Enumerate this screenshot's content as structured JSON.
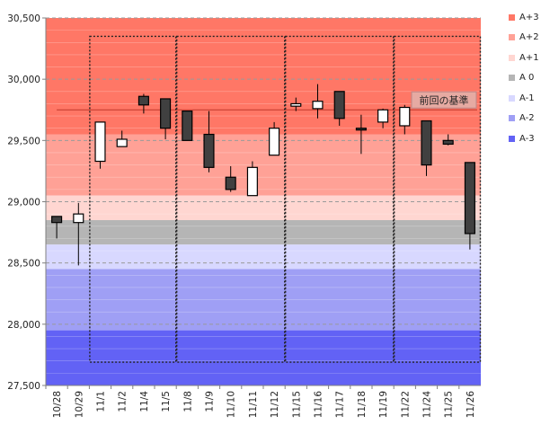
{
  "chart_data": {
    "type": "candlestick",
    "title": "",
    "xlabel": "",
    "ylabel": "",
    "ylim": [
      27500,
      30500
    ],
    "yticks": [
      "27,500",
      "28,000",
      "28,500",
      "29,000",
      "29,500",
      "30,000",
      "30,500"
    ],
    "ytick_values": [
      27500,
      28000,
      28500,
      29000,
      29500,
      30000,
      30500
    ],
    "grid": true,
    "categories": [
      "10/28",
      "10/29",
      "11/1",
      "11/2",
      "11/4",
      "11/5",
      "11/8",
      "11/9",
      "11/10",
      "11/11",
      "11/12",
      "11/15",
      "11/16",
      "11/17",
      "11/18",
      "11/19",
      "11/22",
      "11/24",
      "11/25",
      "11/26"
    ],
    "candles": [
      {
        "date": "10/28",
        "open": 28880,
        "high": 28880,
        "low": 28700,
        "close": 28830
      },
      {
        "date": "10/29",
        "open": 28830,
        "high": 28990,
        "low": 28480,
        "close": 28900
      },
      {
        "date": "11/1",
        "open": 29330,
        "high": 29650,
        "low": 29270,
        "close": 29650
      },
      {
        "date": "11/2",
        "open": 29450,
        "high": 29580,
        "low": 29450,
        "close": 29510
      },
      {
        "date": "11/4",
        "open": 29860,
        "high": 29880,
        "low": 29720,
        "close": 29790
      },
      {
        "date": "11/5",
        "open": 29840,
        "high": 29840,
        "low": 29510,
        "close": 29600
      },
      {
        "date": "11/8",
        "open": 29740,
        "high": 29740,
        "low": 29500,
        "close": 29500
      },
      {
        "date": "11/9",
        "open": 29550,
        "high": 29740,
        "low": 29240,
        "close": 29280
      },
      {
        "date": "11/10",
        "open": 29200,
        "high": 29290,
        "low": 29080,
        "close": 29100
      },
      {
        "date": "11/11",
        "open": 29050,
        "high": 29330,
        "low": 29050,
        "close": 29280
      },
      {
        "date": "11/12",
        "open": 29380,
        "high": 29650,
        "low": 29380,
        "close": 29600
      },
      {
        "date": "11/15",
        "open": 29780,
        "high": 29850,
        "low": 29740,
        "close": 29800
      },
      {
        "date": "11/16",
        "open": 29760,
        "high": 29960,
        "low": 29680,
        "close": 29820
      },
      {
        "date": "11/17",
        "open": 29900,
        "high": 29900,
        "low": 29620,
        "close": 29680
      },
      {
        "date": "11/18",
        "open": 29600,
        "high": 29710,
        "low": 29390,
        "close": 29590
      },
      {
        "date": "11/19",
        "open": 29650,
        "high": 29760,
        "low": 29600,
        "close": 29750
      },
      {
        "date": "11/22",
        "open": 29620,
        "high": 29790,
        "low": 29550,
        "close": 29770
      },
      {
        "date": "11/24",
        "open": 29660,
        "high": 29660,
        "low": 29210,
        "close": 29300
      },
      {
        "date": "11/25",
        "open": 29500,
        "high": 29550,
        "low": 29460,
        "close": 29470
      },
      {
        "date": "11/26",
        "open": 29320,
        "high": 29320,
        "low": 28610,
        "close": 28740
      }
    ],
    "bands": [
      {
        "label": "A+3",
        "from": 29550,
        "to": 30500,
        "color": "#ff7766"
      },
      {
        "label": "A+2",
        "from": 29050,
        "to": 29550,
        "color": "#ffa196"
      },
      {
        "label": "A+1",
        "from": 28850,
        "to": 29050,
        "color": "#ffd6d1"
      },
      {
        "label": "A 0",
        "from": 28650,
        "to": 28850,
        "color": "#b5b5b5"
      },
      {
        "label": "A-1",
        "from": 28450,
        "to": 28650,
        "color": "#d8d8ff"
      },
      {
        "label": "A-2",
        "from": 27950,
        "to": 28450,
        "color": "#9f9ff5"
      },
      {
        "label": "A-3",
        "from": 27500,
        "to": 27950,
        "color": "#6262f5"
      }
    ],
    "legend_position": "right",
    "reference_line": {
      "value": 29750,
      "label": "前回の基準",
      "color": "#c0392b"
    },
    "week_boxes": [
      {
        "start": "11/1",
        "end": "11/5"
      },
      {
        "start": "11/8",
        "end": "11/12"
      },
      {
        "start": "11/15",
        "end": "11/19"
      },
      {
        "start": "11/22",
        "end": "11/26"
      }
    ],
    "week_box_range": [
      27690,
      30350
    ]
  },
  "colors": {
    "up_fill": "#ffffff",
    "down_fill": "#404040",
    "candle_border": "#000000",
    "axis": "#808080",
    "grid": "#b0b0b0"
  }
}
